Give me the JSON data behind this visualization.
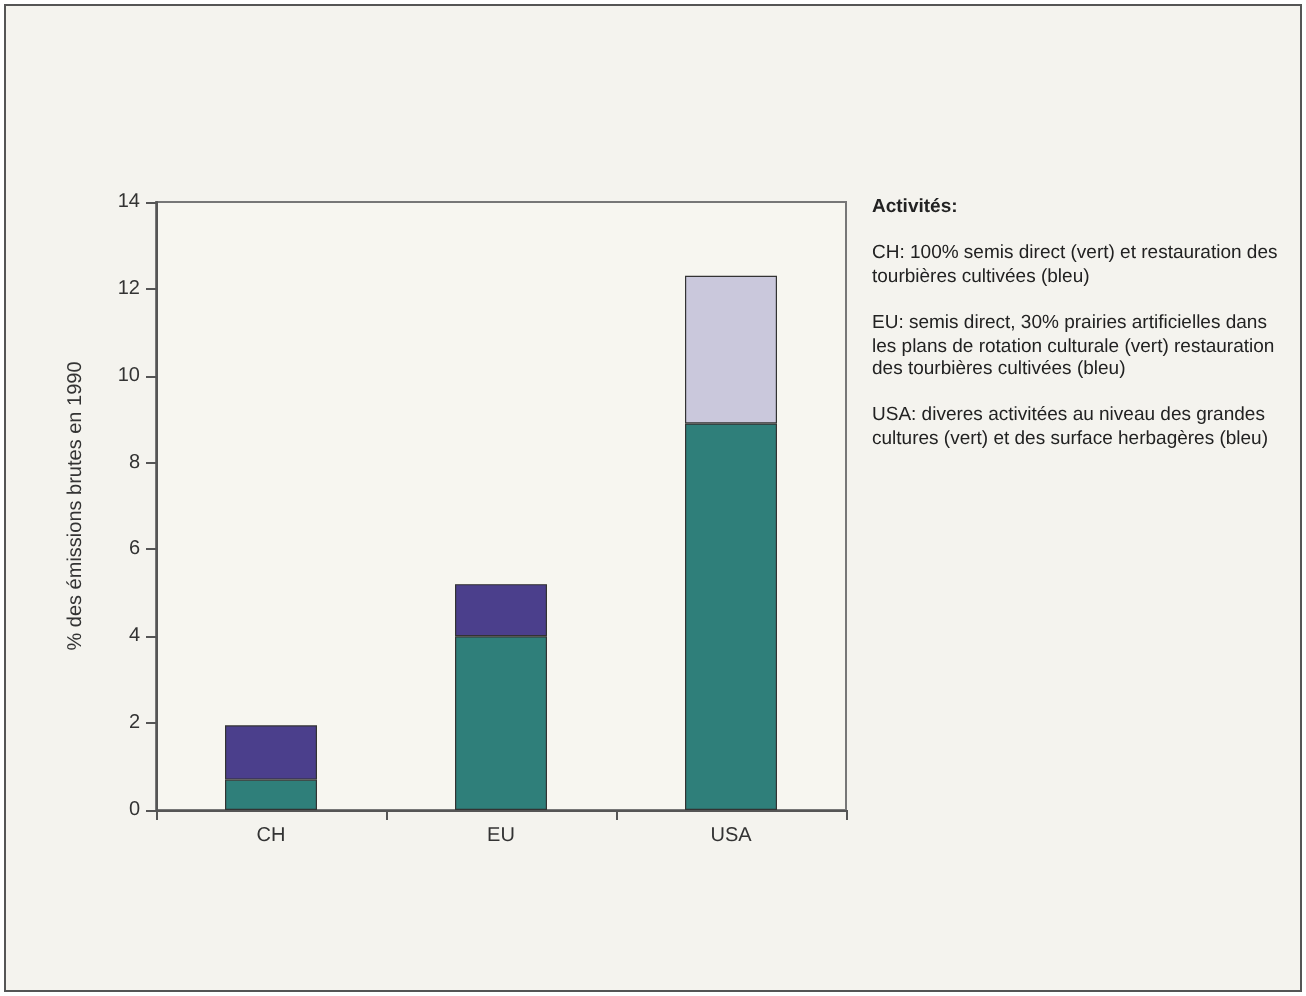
{
  "chart_data": {
    "type": "bar",
    "stacked": true,
    "ylabel": "% des émissions brutes en 1990",
    "categories": [
      "CH",
      "EU",
      "USA"
    ],
    "series": [
      {
        "color": "#2f7f7a",
        "values": [
          0.7,
          4.0,
          8.9
        ]
      },
      {
        "colors": [
          "#4b3f8c",
          "#4b3f8c",
          "#cac8dc"
        ],
        "values": [
          1.25,
          1.2,
          3.4
        ]
      }
    ],
    "ylim": [
      0,
      14
    ],
    "yticks": [
      0,
      2,
      4,
      6,
      8,
      10,
      12,
      14
    ],
    "grid": false,
    "annotations": [
      "Activités:",
      "CH: 100% semis direct (vert) et restauration des tourbières cultivées (bleu)",
      "EU: semis direct, 30% prairies artificielles dans les plans de rotation culturale (vert) restauration des tourbières cultivées (bleu)",
      "USA: diveres activitées au niveau des grandes cultures (vert) et des surface herbagères (bleu)"
    ]
  }
}
